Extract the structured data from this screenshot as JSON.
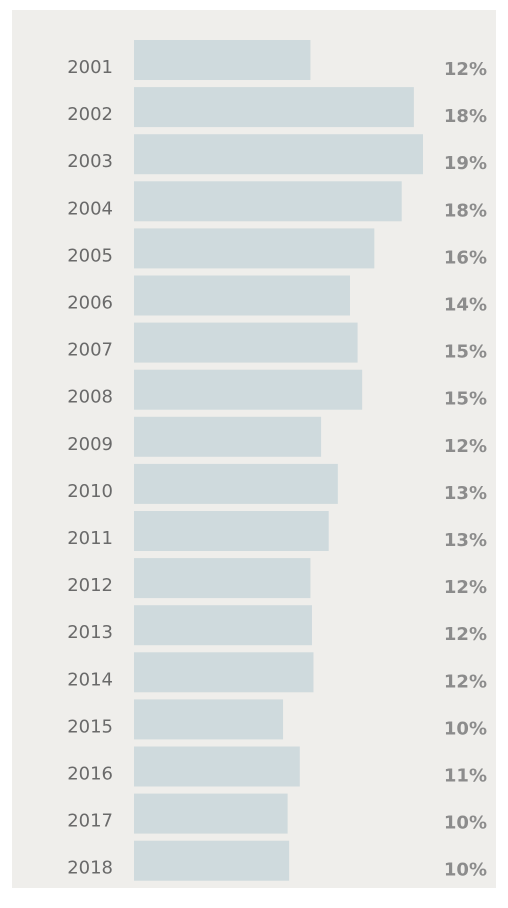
{
  "chart_data": {
    "type": "bar",
    "orientation": "horizontal",
    "categories": [
      "2001",
      "2002",
      "2003",
      "2004",
      "2005",
      "2006",
      "2007",
      "2008",
      "2009",
      "2010",
      "2011",
      "2012",
      "2013",
      "2014",
      "2015",
      "2016",
      "2017",
      "2018"
    ],
    "values": [
      11.6,
      18.4,
      19.0,
      17.6,
      15.8,
      14.2,
      14.7,
      15.0,
      12.3,
      13.4,
      12.8,
      11.6,
      11.7,
      11.8,
      9.8,
      10.9,
      10.1,
      10.2
    ],
    "value_labels": [
      "12%",
      "18%",
      "19%",
      "18%",
      "16%",
      "14%",
      "15%",
      "15%",
      "12%",
      "13%",
      "13%",
      "12%",
      "12%",
      "12%",
      "10%",
      "11%",
      "10%",
      "10%"
    ],
    "color": "#cfdadd"
  }
}
